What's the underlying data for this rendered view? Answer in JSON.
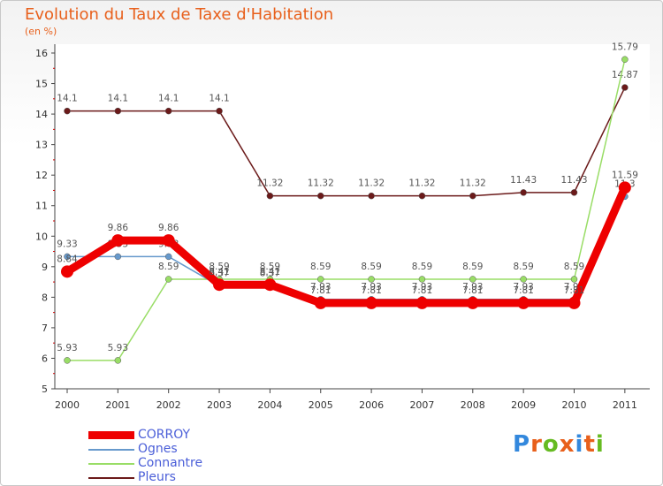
{
  "chart_data": {
    "type": "line",
    "title": "Evolution du Taux de Taxe d'Habitation",
    "ylabel": "(en %)",
    "xlabel": "",
    "ylim": [
      5,
      16
    ],
    "yticks": [
      5,
      6,
      7,
      8,
      9,
      10,
      11,
      12,
      13,
      14,
      15,
      16
    ],
    "categories": [
      "2000",
      "2001",
      "2002",
      "2003",
      "2004",
      "2005",
      "2006",
      "2007",
      "2008",
      "2009",
      "2010",
      "2011"
    ],
    "series": [
      {
        "name": "Pleurs",
        "color": "#6b1a1a",
        "values": [
          14.1,
          14.1,
          14.1,
          14.1,
          11.32,
          11.32,
          11.32,
          11.32,
          11.32,
          11.43,
          11.43,
          14.87
        ],
        "labels": [
          "14.1",
          "14.1",
          "14.1",
          "14.1",
          "11.32",
          "11.32",
          "11.32",
          "11.32",
          "11.32",
          "11.43",
          "11.43",
          "14.87"
        ]
      },
      {
        "name": "Connantre",
        "color": "#99dd66",
        "values": [
          5.93,
          5.93,
          8.59,
          8.59,
          8.59,
          8.59,
          8.59,
          8.59,
          8.59,
          8.59,
          8.59,
          15.79
        ],
        "labels": [
          "5.93",
          "5.93",
          "8.59",
          "8.59",
          "8.59",
          "8.59",
          "8.59",
          "8.59",
          "8.59",
          "8.59",
          "8.59",
          "15.79"
        ]
      },
      {
        "name": "Ognes",
        "color": "#6699cc",
        "values": [
          9.33,
          9.33,
          9.33,
          8.37,
          8.37,
          7.93,
          7.93,
          7.93,
          7.93,
          7.93,
          7.93,
          11.3
        ],
        "labels": [
          "9.33",
          "9.33",
          "9.33",
          "8.37",
          "8.37",
          "7.93",
          "7.93",
          "7.93",
          "7.93",
          "7.93",
          "7.93",
          "11.3"
        ]
      },
      {
        "name": "CORROY",
        "color": "#ee0000",
        "values": [
          8.84,
          9.86,
          9.86,
          8.41,
          8.41,
          7.81,
          7.81,
          7.81,
          7.81,
          7.81,
          7.81,
          11.59
        ],
        "labels": [
          "8.84",
          "9.86",
          "9.86",
          "8.41",
          "8.41",
          "7.81",
          "7.81",
          "7.81",
          "7.81",
          "7.81",
          "7.81",
          "11.59"
        ]
      }
    ],
    "legend_order": [
      "CORROY",
      "Ognes",
      "Connantre",
      "Pleurs"
    ],
    "legend_position": "bottom-left"
  },
  "legend": {
    "corroy": "CORROY",
    "ognes": "Ognes",
    "connantre": "Connantre",
    "pleurs": "Pleurs"
  },
  "brand": [
    "P",
    "r",
    "o",
    "x",
    "i",
    "t",
    "i"
  ],
  "brand_colors": [
    "#3388dd",
    "#e8601c",
    "#66bb22",
    "#e8601c",
    "#3388dd",
    "#e8601c",
    "#66bb22"
  ]
}
